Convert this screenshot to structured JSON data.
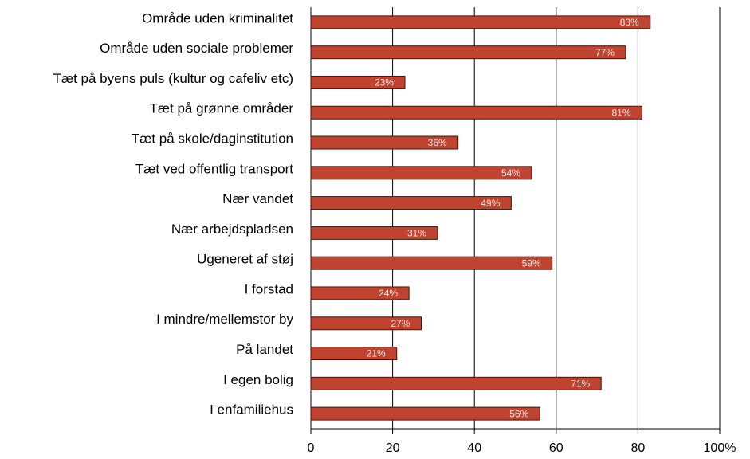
{
  "chart_data": {
    "type": "barh",
    "categories": [
      "Område uden kriminalitet",
      "Område uden sociale problemer",
      "Tæt på byens puls (kultur og cafeliv etc)",
      "Tæt på grønne områder",
      "Tæt på skole/daginstitution",
      "Tæt ved offentlig transport",
      "Nær vandet",
      "Nær arbejdspladsen",
      "Ugeneret af støj",
      "I forstad",
      "I mindre/mellemstor by",
      "På landet",
      "I egen bolig",
      "I enfamiliehus"
    ],
    "values": [
      83,
      77,
      23,
      81,
      36,
      54,
      49,
      31,
      59,
      24,
      27,
      21,
      71,
      56
    ],
    "value_labels": [
      "83%",
      "77%",
      "23%",
      "81%",
      "36%",
      "54%",
      "49%",
      "31%",
      "59%",
      "24%",
      "27%",
      "21%",
      "71%",
      "56%"
    ],
    "color": "#c0432f",
    "xlim": [
      0,
      100
    ],
    "xticks": [
      0,
      20,
      40,
      60,
      80,
      {
        "value": 100,
        "label": "100%"
      }
    ],
    "grid": true
  }
}
